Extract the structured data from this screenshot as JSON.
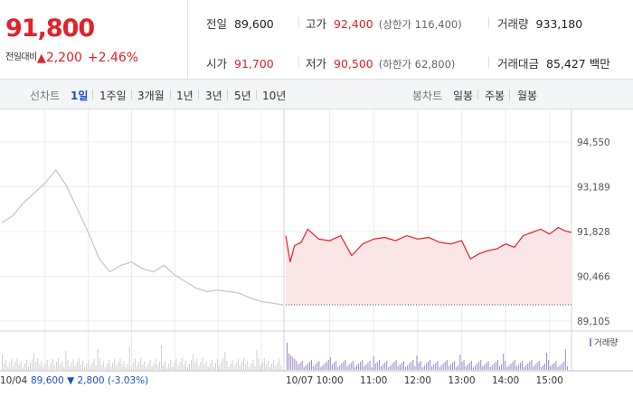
{
  "quote": {
    "price": "91,800",
    "change_label": "전일대비",
    "change_icon": "up-triangle-icon",
    "change_arrow": "▲",
    "change_value": "2,200",
    "change_pct": "+2.46%",
    "up_color": "#e4202a",
    "down_color": "#1d4fc4"
  },
  "stats": {
    "prev_close": {
      "label": "전일",
      "value": "89,600"
    },
    "high": {
      "label": "고가",
      "value": "92,400",
      "sub": "(상한가 116,400)"
    },
    "volume": {
      "label": "거래량",
      "value": "933,180"
    },
    "open": {
      "label": "시가",
      "value": "91,700"
    },
    "low": {
      "label": "저가",
      "value": "90,500",
      "sub": "(하한가 62,800)"
    },
    "amount": {
      "label": "거래대금",
      "value": "85,427 백만"
    }
  },
  "period_bar": {
    "line_label": "선차트",
    "line_items": [
      "1일",
      "1주일",
      "3개월",
      "1년",
      "3년",
      "5년",
      "10년"
    ],
    "active": "1일",
    "candle_label": "봉차트",
    "candle_items": [
      "일봉",
      "주봉",
      "월봉"
    ]
  },
  "chart_data": {
    "type": "line",
    "y_ticks": [
      "94,550",
      "93,189",
      "91,828",
      "90,466",
      "89,105"
    ],
    "ylim": [
      89105,
      94550
    ],
    "prev_close": 89600,
    "prev_day": {
      "date": "10/04",
      "close": "89,600",
      "arrow": "▼",
      "change": "2,800",
      "pct": "(-3.03%)",
      "x": [
        9.0,
        9.25,
        9.5,
        9.75,
        10.0,
        10.25,
        10.5,
        10.75,
        11.0,
        11.25,
        11.5,
        11.75,
        12.0,
        12.25,
        12.5,
        12.75,
        13.0,
        13.25,
        13.5,
        13.75,
        14.0,
        14.25,
        14.5,
        14.75,
        15.0,
        15.25,
        15.5
      ],
      "y": [
        92100,
        92300,
        92700,
        93000,
        93300,
        93700,
        93200,
        92500,
        91800,
        91000,
        90600,
        90800,
        90900,
        90700,
        90600,
        90800,
        90500,
        90300,
        90100,
        90000,
        90050,
        90000,
        89950,
        89800,
        89700,
        89650,
        89600
      ]
    },
    "today": {
      "date": "10/07",
      "x_ticks": [
        "10:00",
        "11:00",
        "12:00",
        "13:00",
        "14:00",
        "15:00"
      ],
      "x": [
        9.0,
        9.1,
        9.2,
        9.35,
        9.5,
        9.75,
        10.0,
        10.25,
        10.5,
        10.75,
        11.0,
        11.25,
        11.5,
        11.75,
        12.0,
        12.25,
        12.5,
        12.75,
        13.0,
        13.2,
        13.4,
        13.6,
        13.8,
        14.0,
        14.2,
        14.4,
        14.6,
        14.8,
        15.0,
        15.2,
        15.35,
        15.5
      ],
      "y": [
        91700,
        90900,
        91400,
        91500,
        91900,
        91600,
        91550,
        91700,
        91100,
        91450,
        91600,
        91650,
        91550,
        91700,
        91600,
        91650,
        91500,
        91450,
        91550,
        91000,
        91150,
        91250,
        91300,
        91450,
        91350,
        91700,
        91800,
        91900,
        91750,
        91950,
        91850,
        91800
      ]
    },
    "volume_legend": "거래량",
    "volume_color": "#9a87c8"
  }
}
